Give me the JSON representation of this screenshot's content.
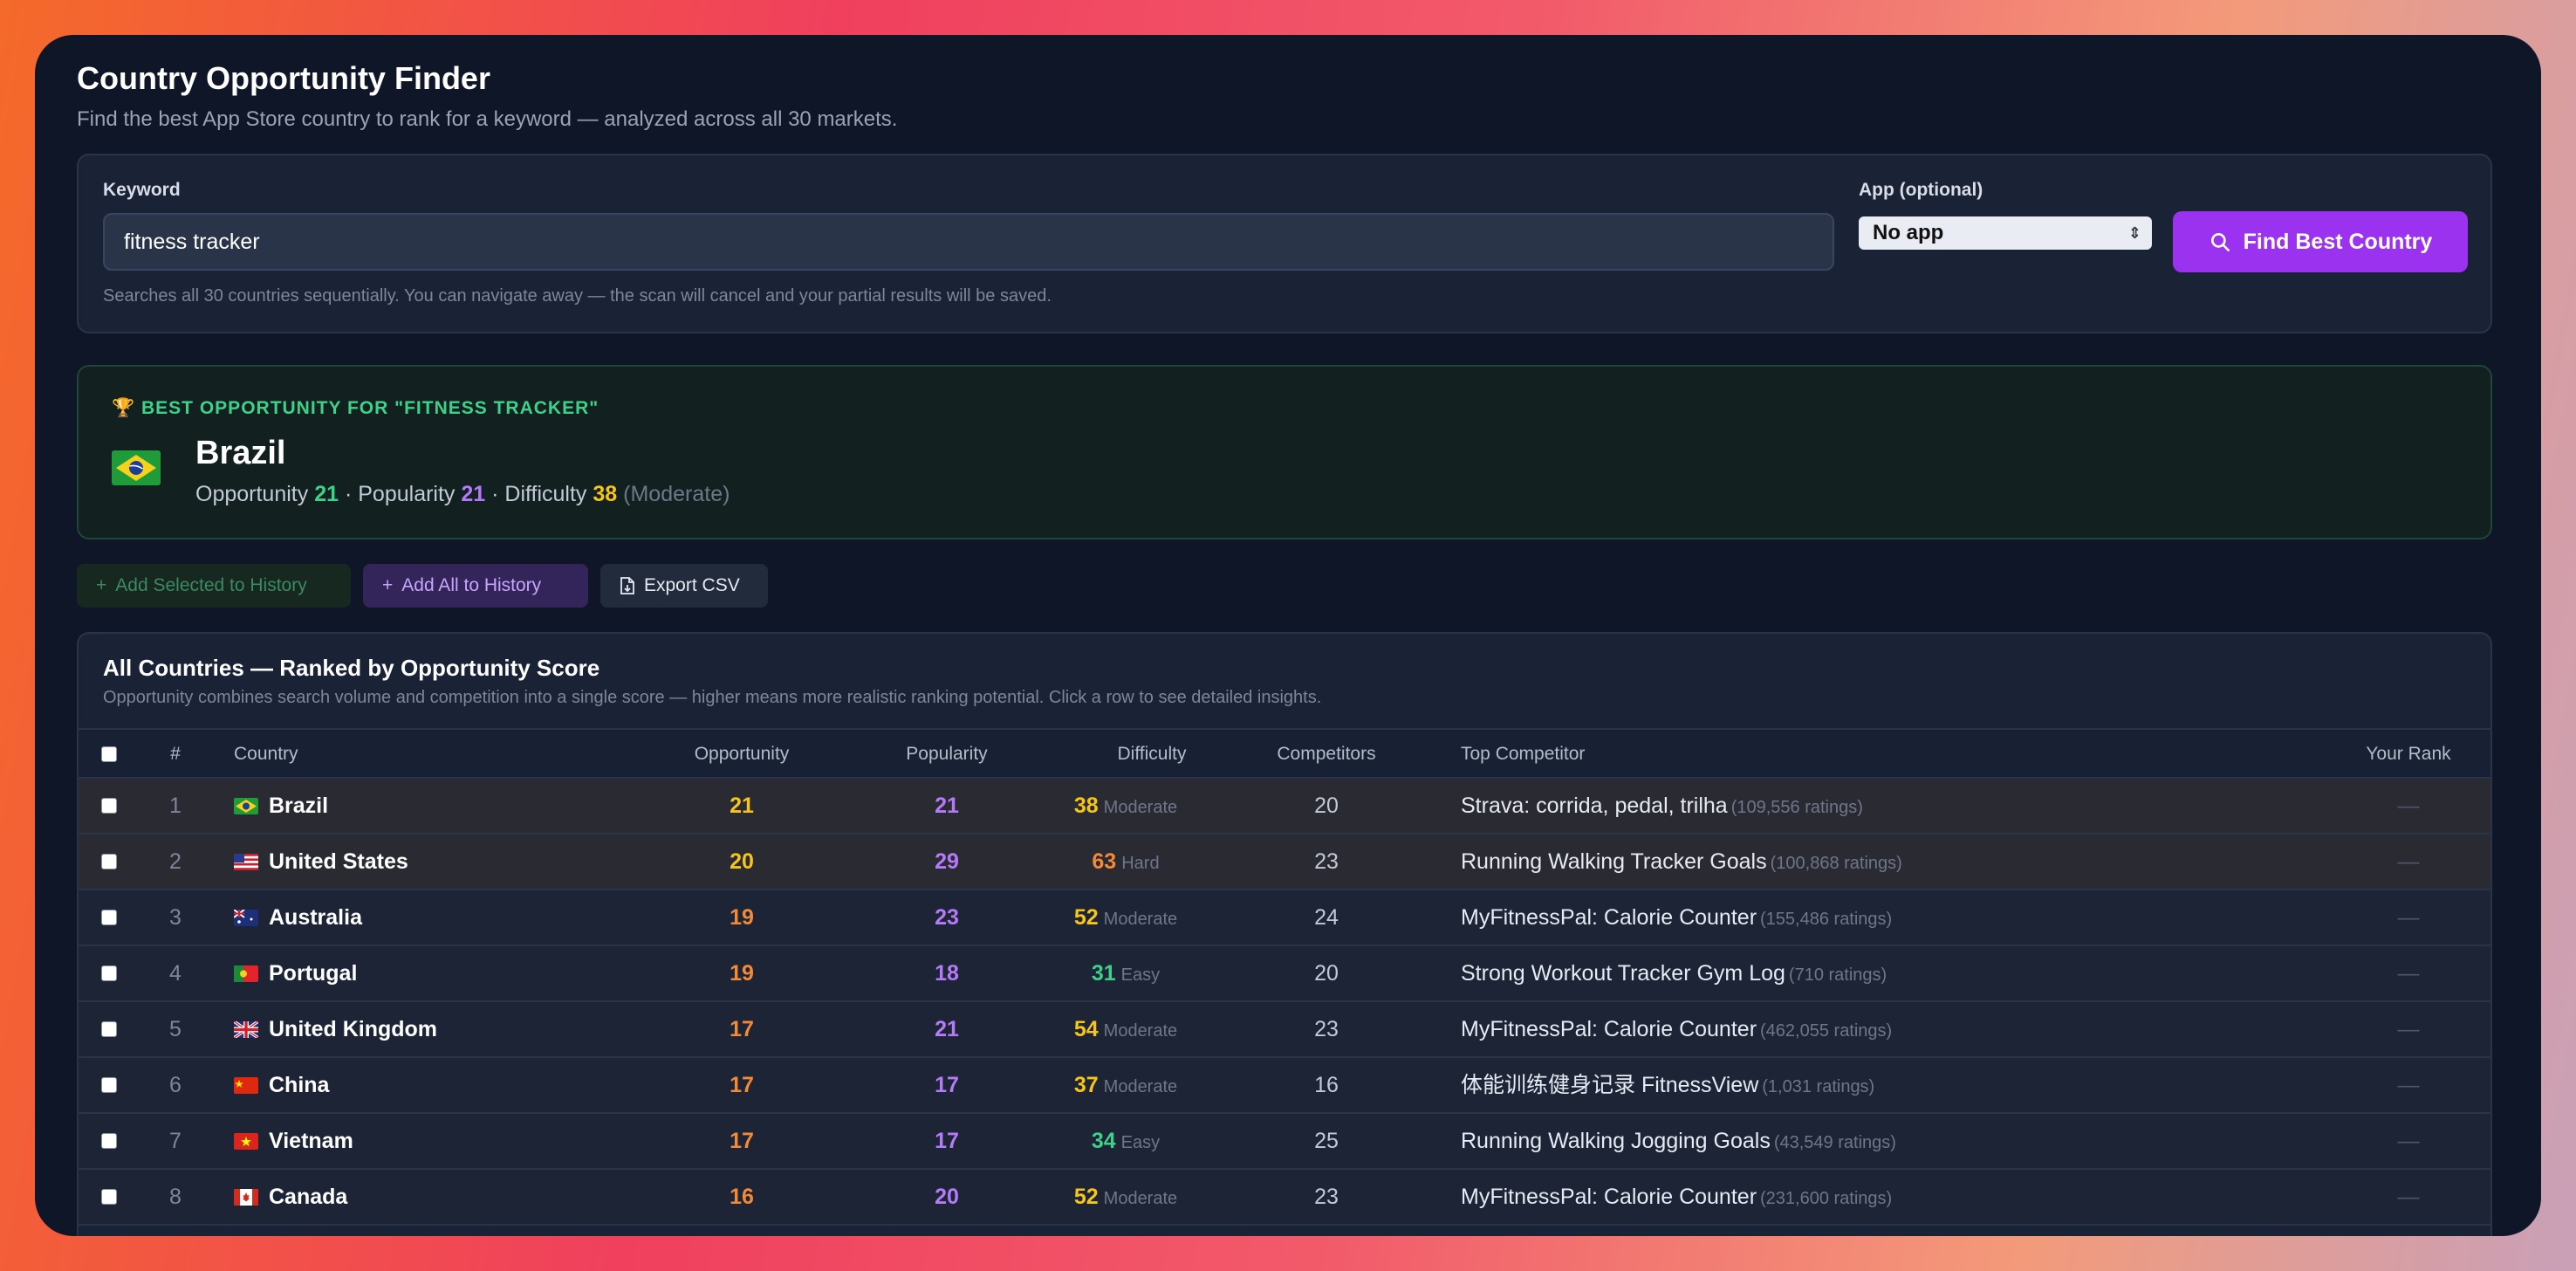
{
  "header": {
    "title": "Country Opportunity Finder",
    "subtitle": "Find the best App Store country to rank for a keyword — analyzed across all 30 markets."
  },
  "search": {
    "keyword_label": "Keyword",
    "keyword_value": "fitness tracker",
    "app_label": "App (optional)",
    "app_value": "No app",
    "find_button": "Find Best Country",
    "hint": "Searches all 30 countries sequentially. You can navigate away — the scan will cancel and your partial results will be saved."
  },
  "best": {
    "heading": "BEST OPPORTUNITY FOR \"FITNESS TRACKER\"",
    "country": "Brazil",
    "opportunity_label": "Opportunity",
    "opportunity": "21",
    "popularity_label": "Popularity",
    "popularity": "21",
    "difficulty_label": "Difficulty",
    "difficulty": "38",
    "difficulty_level": "(Moderate)",
    "separator": "·"
  },
  "actions": {
    "add_selected": "Add Selected to History",
    "add_all": "Add All to History",
    "export_csv": "Export CSV"
  },
  "table": {
    "title": "All Countries — Ranked by Opportunity Score",
    "description": "Opportunity combines search volume and competition into a single score — higher means more realistic ranking potential. Click a row to see detailed insights.",
    "columns": {
      "rank": "#",
      "country": "Country",
      "opportunity": "Opportunity",
      "popularity": "Popularity",
      "difficulty": "Difficulty",
      "competitors": "Competitors",
      "top_competitor": "Top Competitor",
      "your_rank": "Your Rank"
    },
    "rows": [
      {
        "rank": "1",
        "country": "Brazil",
        "flag": "br",
        "opportunity": "21",
        "popularity": "21",
        "difficulty": "38",
        "difficulty_level": "Moderate",
        "competitors": "20",
        "top_competitor": "Strava: corrida, pedal, trilha",
        "ratings": "(109,556 ratings)",
        "your_rank": "—"
      },
      {
        "rank": "2",
        "country": "United States",
        "flag": "us",
        "opportunity": "20",
        "popularity": "29",
        "difficulty": "63",
        "difficulty_level": "Hard",
        "competitors": "23",
        "top_competitor": "Running Walking Tracker Goals",
        "ratings": "(100,868 ratings)",
        "your_rank": "—"
      },
      {
        "rank": "3",
        "country": "Australia",
        "flag": "au",
        "opportunity": "19",
        "popularity": "23",
        "difficulty": "52",
        "difficulty_level": "Moderate",
        "competitors": "24",
        "top_competitor": "MyFitnessPal: Calorie Counter",
        "ratings": "(155,486 ratings)",
        "your_rank": "—"
      },
      {
        "rank": "4",
        "country": "Portugal",
        "flag": "pt",
        "opportunity": "19",
        "popularity": "18",
        "difficulty": "31",
        "difficulty_level": "Easy",
        "competitors": "20",
        "top_competitor": "Strong Workout Tracker Gym Log",
        "ratings": "(710 ratings)",
        "your_rank": "—"
      },
      {
        "rank": "5",
        "country": "United Kingdom",
        "flag": "gb",
        "opportunity": "17",
        "popularity": "21",
        "difficulty": "54",
        "difficulty_level": "Moderate",
        "competitors": "23",
        "top_competitor": "MyFitnessPal: Calorie Counter",
        "ratings": "(462,055 ratings)",
        "your_rank": "—"
      },
      {
        "rank": "6",
        "country": "China",
        "flag": "cn",
        "opportunity": "17",
        "popularity": "17",
        "difficulty": "37",
        "difficulty_level": "Moderate",
        "competitors": "16",
        "top_competitor": "体能训练健身记录 FitnessView",
        "ratings": "(1,031 ratings)",
        "your_rank": "—"
      },
      {
        "rank": "7",
        "country": "Vietnam",
        "flag": "vn",
        "opportunity": "17",
        "popularity": "17",
        "difficulty": "34",
        "difficulty_level": "Easy",
        "competitors": "25",
        "top_competitor": "Running Walking Jogging Goals",
        "ratings": "(43,549 ratings)",
        "your_rank": "—"
      },
      {
        "rank": "8",
        "country": "Canada",
        "flag": "ca",
        "opportunity": "16",
        "popularity": "20",
        "difficulty": "52",
        "difficulty_level": "Moderate",
        "competitors": "23",
        "top_competitor": "MyFitnessPal: Calorie Counter",
        "ratings": "(231,600 ratings)",
        "your_rank": "—"
      }
    ]
  },
  "colors": {
    "accent": "#9b32f0",
    "opportunity_top": "#f5c518",
    "opportunity": "#f38a37",
    "popularity": "#b57af7",
    "easy": "#3ed18a",
    "moderate": "#f5c518",
    "hard": "#f38a37"
  }
}
